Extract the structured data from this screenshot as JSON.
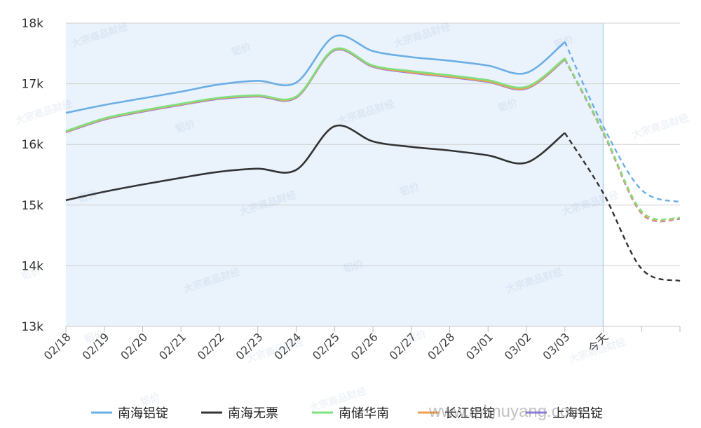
{
  "chart_data": {
    "type": "line",
    "categories": [
      "02/18",
      "02/19",
      "02/20",
      "02/21",
      "02/22",
      "02/23",
      "02/24",
      "02/25",
      "02/26",
      "02/27",
      "02/28",
      "03/01",
      "03/02",
      "03/03",
      "今天",
      "",
      ""
    ],
    "y_ticks": [
      "13k",
      "14k",
      "15k",
      "16k",
      "17k",
      "18k"
    ],
    "ylim": [
      13000,
      18000
    ],
    "grid": true,
    "legend_position": "bottom",
    "forecast_from_index": 13,
    "today_label": "今天",
    "series": [
      {
        "name": "南海铝锭",
        "color": "#6aaee6",
        "values": [
          16520,
          16650,
          16760,
          16870,
          16990,
          17050,
          17020,
          17780,
          17540,
          17440,
          17380,
          17300,
          17180,
          17690,
          16300,
          15250,
          15050
        ]
      },
      {
        "name": "南海无票",
        "color": "#333333",
        "values": [
          15080,
          15220,
          15340,
          15450,
          15550,
          15600,
          15580,
          16300,
          16050,
          15960,
          15900,
          15820,
          15700,
          16190,
          15200,
          13950,
          13750
        ]
      },
      {
        "name": "南储华南",
        "color": "#7ee07e",
        "values": [
          16220,
          16430,
          16560,
          16670,
          16770,
          16810,
          16790,
          17570,
          17300,
          17210,
          17140,
          17060,
          16950,
          17420,
          16220,
          14900,
          14790
        ]
      },
      {
        "name": "长江铝锭",
        "color": "#f0a050",
        "values": [
          16210,
          16420,
          16550,
          16660,
          16760,
          16800,
          16780,
          17560,
          17290,
          17190,
          17120,
          17040,
          16930,
          17410,
          16200,
          14870,
          14780
        ]
      },
      {
        "name": "上海铝锭",
        "color": "#8b7ee8",
        "values": [
          16200,
          16410,
          16540,
          16650,
          16750,
          16790,
          16770,
          17550,
          17280,
          17180,
          17110,
          17030,
          16920,
          17400,
          16190,
          14860,
          14770
        ]
      }
    ]
  },
  "watermark": {
    "brand": "大宗商品财经",
    "tag": "铝价",
    "site": "www.mlmuyang.com"
  }
}
